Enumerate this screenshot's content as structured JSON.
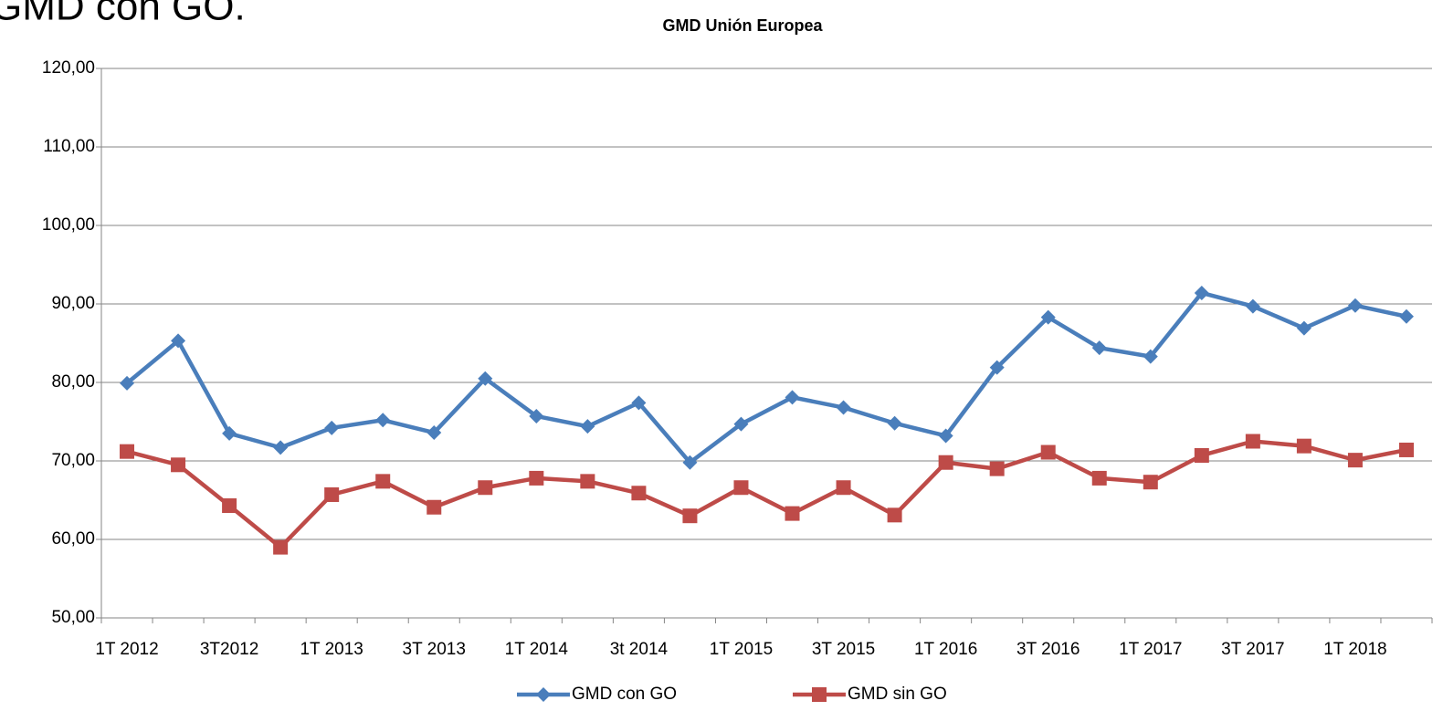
{
  "slide_title": "GMD con GO.",
  "chart_data": {
    "type": "line",
    "title": "GMD Unión Europea",
    "categories": [
      "1T 2012",
      null,
      "3T2012",
      null,
      "1T 2013",
      null,
      "3T 2013",
      null,
      "1T 2014",
      null,
      "3t 2014",
      null,
      "1T 2015",
      null,
      "3T 2015",
      null,
      "1T 2016",
      null,
      "3T 2016",
      null,
      "1T 2017",
      null,
      "3T 2017",
      null,
      "1T 2018",
      null
    ],
    "series": [
      {
        "name": "GMD con GO",
        "color": "#4a7ebb",
        "marker": "diamond",
        "values": [
          79.9,
          85.3,
          73.5,
          71.7,
          74.2,
          75.2,
          73.6,
          80.5,
          75.7,
          74.4,
          77.4,
          69.8,
          74.7,
          78.1,
          76.8,
          74.8,
          73.2,
          81.9,
          88.3,
          84.4,
          83.3,
          91.4,
          89.7,
          86.9,
          89.8,
          88.4
        ]
      },
      {
        "name": "GMD sin GO",
        "color": "#be4b48",
        "marker": "square",
        "values": [
          71.2,
          69.5,
          64.3,
          59.0,
          65.7,
          67.4,
          64.1,
          66.6,
          67.8,
          67.4,
          65.9,
          63.0,
          66.6,
          63.3,
          66.6,
          63.1,
          69.8,
          69.0,
          71.1,
          67.8,
          67.3,
          70.7,
          72.5,
          71.9,
          70.1,
          71.4
        ]
      }
    ],
    "ylim": [
      50,
      120
    ],
    "yticks": [
      {
        "value": 50,
        "label": "50,00"
      },
      {
        "value": 60,
        "label": "60,00"
      },
      {
        "value": 70,
        "label": "70,00"
      },
      {
        "value": 80,
        "label": "80,00"
      },
      {
        "value": 90,
        "label": "90,00"
      },
      {
        "value": 100,
        "label": "100,00"
      },
      {
        "value": 110,
        "label": "110,00"
      },
      {
        "value": 120,
        "label": "120,00"
      }
    ],
    "grid": true,
    "legend": "bottom"
  }
}
